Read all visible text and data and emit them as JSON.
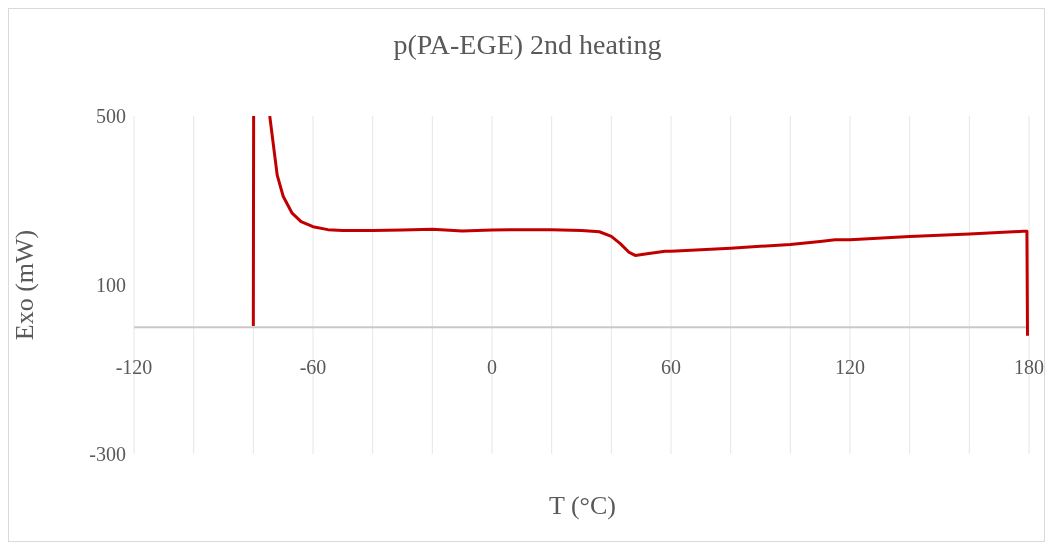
{
  "chart_data": {
    "type": "line",
    "title": "p(PA-EGE) 2nd heating",
    "xlabel": "T (°C)",
    "ylabel": "Exo (mW)",
    "x": [
      -80,
      -79.9,
      -77,
      -74.5,
      -72,
      -70,
      -67,
      -64,
      -60,
      -55,
      -50,
      -40,
      -30,
      -20,
      -10,
      0,
      10,
      20,
      30,
      36,
      40,
      43,
      46,
      48,
      52,
      58,
      60,
      80,
      100,
      110,
      115,
      120,
      140,
      160,
      178,
      179.3,
      179.5
    ],
    "series": [
      {
        "color": "#c00000",
        "values": [
          3,
          500,
          null,
          500,
          360,
          310,
          270,
          250,
          238,
          231,
          229,
          229,
          230,
          232,
          228,
          230,
          231,
          231,
          229,
          226,
          215,
          198,
          177,
          170,
          174,
          180,
          180,
          187,
          196,
          203,
          207,
          207,
          215,
          221,
          227,
          227,
          -20
        ]
      }
    ],
    "xlim": [
      -120,
      180
    ],
    "xticks": [
      -120,
      {
        "value": -100,
        "label": null
      },
      {
        "value": -80,
        "label": null
      },
      -60,
      {
        "value": -40,
        "label": null
      },
      {
        "value": -20,
        "label": null
      },
      0,
      {
        "value": 20,
        "label": null
      },
      {
        "value": 40,
        "label": null
      },
      60,
      {
        "value": 80,
        "label": null
      },
      {
        "value": 100,
        "label": null
      },
      120,
      {
        "value": 140,
        "label": null
      },
      {
        "value": 160,
        "label": null
      },
      180
    ],
    "ylim": [
      -300,
      500
    ],
    "yticks": [
      -300,
      100,
      500
    ],
    "grid": "x"
  }
}
